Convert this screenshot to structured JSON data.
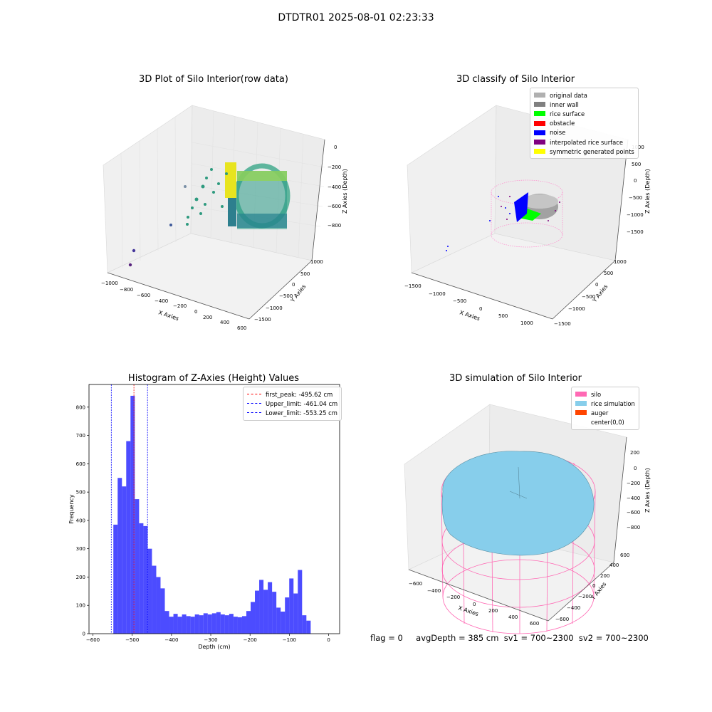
{
  "figure": {
    "suptitle": "DTDTR01 2025-08-01 02:23:33"
  },
  "panels": {
    "raw": {
      "title": "3D Plot of Silo Interior(row data)",
      "xlabel": "X Axies",
      "ylabel": "Y Axies",
      "zlabel": "Z Axies (Depth)",
      "xticks": [
        "−1000",
        "−800",
        "−600",
        "−400",
        "−200",
        "0",
        "200",
        "400",
        "600"
      ],
      "yticks": [
        "1000",
        "500",
        "0",
        "−500",
        "−1000",
        "−1500"
      ],
      "zticks": [
        "0",
        "−200",
        "−400",
        "−600",
        "−800"
      ]
    },
    "classify": {
      "title": "3D classify of Silo Interior",
      "xlabel": "X Axies",
      "ylabel": "Y Axies",
      "zlabel": "Z Axies (Depth)",
      "xticks": [
        "−1500",
        "−1000",
        "−500",
        "0",
        "500",
        "1000"
      ],
      "yticks": [
        "1000",
        "500",
        "0",
        "−500",
        "−1000",
        "−1500"
      ],
      "zticks": [
        "1000",
        "500",
        "0",
        "−500",
        "−1000",
        "−1500"
      ],
      "legend": [
        {
          "label": "original data",
          "color": "#b0b0b0"
        },
        {
          "label": "inner wall",
          "color": "#808080"
        },
        {
          "label": "rice surface",
          "color": "#00ff00"
        },
        {
          "label": "obstacle",
          "color": "#ff0000"
        },
        {
          "label": "noise",
          "color": "#0000ff"
        },
        {
          "label": "interpolated rice surface",
          "color": "#800080"
        },
        {
          "label": "symmetric generated points",
          "color": "#ffff00"
        }
      ]
    },
    "simulation": {
      "title": "3D simulation of Silo Interior",
      "xlabel": "X Axies",
      "ylabel": "Y Axies",
      "zlabel": "Z Axies (Depth)",
      "xticks": [
        "−600",
        "−400",
        "−200",
        "0",
        "200",
        "400",
        "600"
      ],
      "yticks": [
        "600",
        "400",
        "200",
        "0",
        "−200",
        "−400",
        "−600"
      ],
      "zticks": [
        "200",
        "0",
        "−200",
        "−400",
        "−600",
        "−800"
      ],
      "legend": [
        {
          "label": "silo",
          "color": "#ff69b4"
        },
        {
          "label": "rice simulation",
          "color": "#87ceeb"
        },
        {
          "label": "auger",
          "color": "#ff4500"
        },
        {
          "label": "center(0,0)",
          "color": ""
        }
      ]
    }
  },
  "footer": {
    "flag": "flag = 0",
    "stats": "avgDepth = 385 cm  sv1 = 700~2300  sv2 = 700~2300"
  },
  "chart_data": {
    "type": "bar",
    "title": "Histogram of Z-Axies (Height) Values",
    "xlabel": "Depth (cm)",
    "ylabel": "Frequency",
    "xlim": [
      -610,
      28
    ],
    "ylim": [
      0,
      880
    ],
    "xticks": [
      -600,
      -500,
      -400,
      -300,
      -200,
      -100,
      0
    ],
    "xtick_labels": [
      "−600",
      "−500",
      "−400",
      "−300",
      "−200",
      "−100",
      "0"
    ],
    "yticks": [
      0,
      100,
      200,
      300,
      400,
      500,
      600,
      700,
      800
    ],
    "bin_start": -548,
    "bin_width": 10.92,
    "values": [
      385,
      550,
      520,
      680,
      840,
      475,
      390,
      380,
      300,
      240,
      200,
      160,
      80,
      60,
      70,
      60,
      68,
      62,
      60,
      68,
      65,
      72,
      68,
      72,
      76,
      68,
      65,
      70,
      60,
      58,
      62,
      80,
      112,
      152,
      190,
      155,
      182,
      148,
      92,
      78,
      128,
      195,
      142,
      225,
      65,
      46
    ],
    "bar_color": "#0000ff",
    "reference_lines": [
      {
        "name": "first_peak: -495.62 cm",
        "x": -495.62,
        "color": "#ff0000"
      },
      {
        "name": "Upper_limit: -461.04 cm",
        "x": -461.04,
        "color": "#0000ff"
      },
      {
        "name": "Lower_limit: -553.25 cm",
        "x": -553.25,
        "color": "#0000ff"
      }
    ],
    "legend_position": "upper right"
  }
}
